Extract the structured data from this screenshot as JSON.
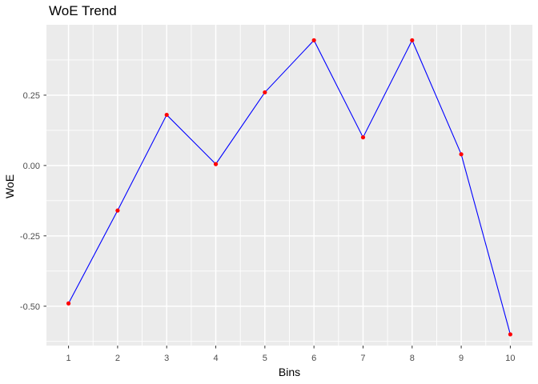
{
  "chart_data": {
    "type": "line",
    "title": "WoE Trend",
    "xlabel": "Bins",
    "ylabel": "WoE",
    "series": [
      {
        "name": "WoE",
        "x": [
          1,
          2,
          3,
          4,
          5,
          6,
          7,
          8,
          9,
          10
        ],
        "y": [
          -0.49,
          -0.16,
          0.18,
          0.005,
          0.26,
          0.445,
          0.1,
          0.445,
          0.04,
          -0.6
        ]
      }
    ],
    "x_ticks": [
      {
        "value": 1,
        "label": "1"
      },
      {
        "value": 2,
        "label": "2"
      },
      {
        "value": 3,
        "label": "3"
      },
      {
        "value": 4,
        "label": "4"
      },
      {
        "value": 5,
        "label": "5"
      },
      {
        "value": 6,
        "label": "6"
      },
      {
        "value": 7,
        "label": "7"
      },
      {
        "value": 8,
        "label": "8"
      },
      {
        "value": 9,
        "label": "9"
      },
      {
        "value": 10,
        "label": "10"
      }
    ],
    "y_ticks": [
      {
        "value": 0.25,
        "label": "0.25"
      },
      {
        "value": 0.0,
        "label": "0.00"
      },
      {
        "value": -0.25,
        "label": "-0.25"
      },
      {
        "value": -0.5,
        "label": "-0.50"
      }
    ],
    "x_minor": [
      1.5,
      2.5,
      3.5,
      4.5,
      5.5,
      6.5,
      7.5,
      8.5,
      9.5
    ],
    "y_minor": [
      0.375,
      0.125,
      -0.125,
      -0.375,
      -0.625
    ],
    "xlim": [
      0.55,
      10.45
    ],
    "ylim": [
      -0.64,
      0.5
    ],
    "grid": "major-and-minor",
    "legend": false,
    "colors": {
      "line": "#0000FF",
      "point": "#FF0000",
      "panel_bg": "#EBEBEB",
      "grid": "#FFFFFF",
      "axis_text": "#4D4D4D",
      "tick_mark": "#333333",
      "title_text": "#000000",
      "background": "#FFFFFF"
    }
  }
}
